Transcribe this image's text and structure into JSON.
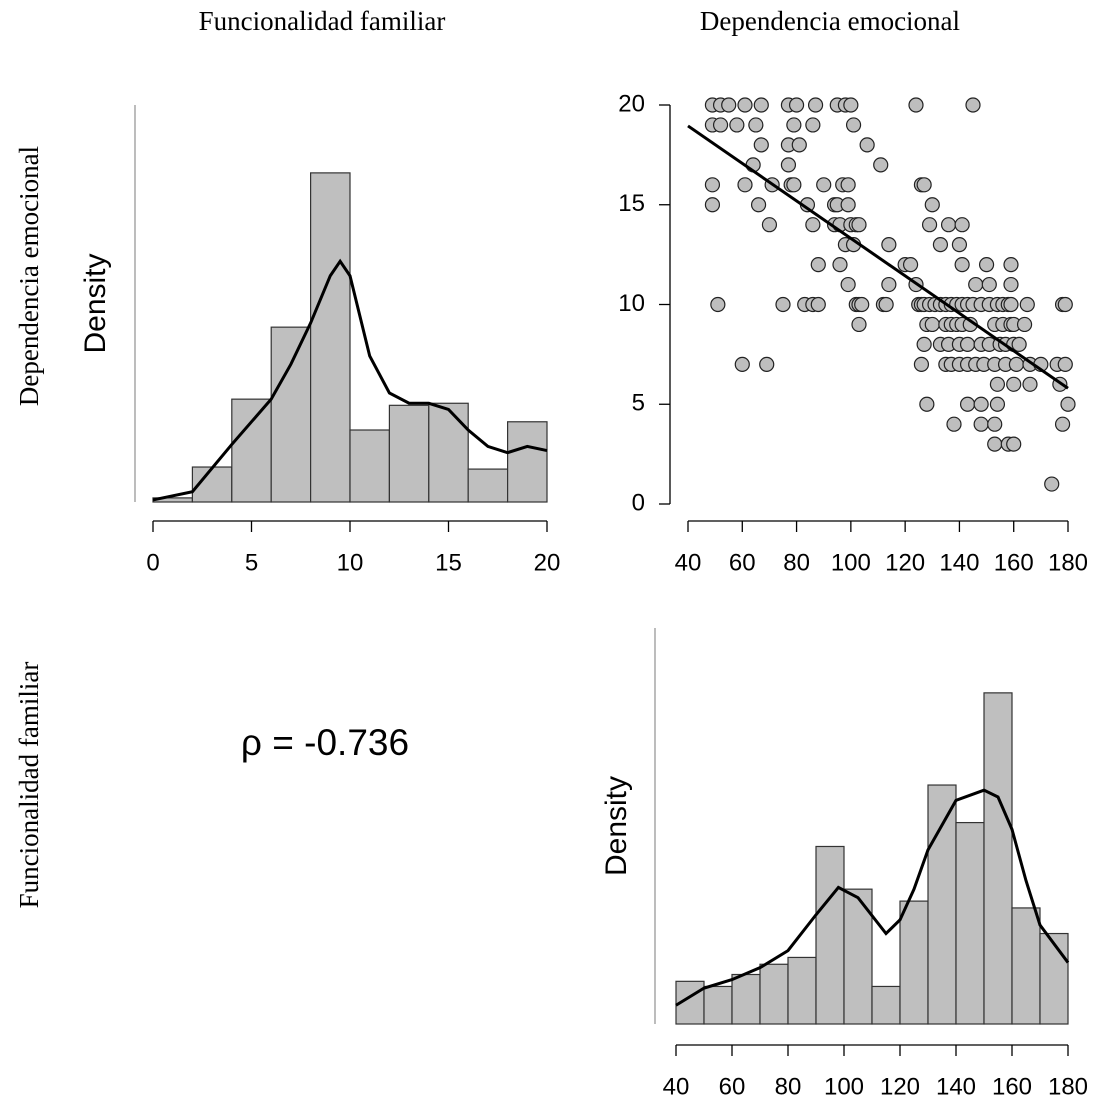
{
  "column_labels": [
    "Funcionalidad familiar",
    "Dependencia emocional"
  ],
  "row_labels": [
    "Dependencia emocional",
    "Funcionalidad familiar"
  ],
  "chart_data": [
    {
      "type": "histogram",
      "ylabel": "Density",
      "color": "#bfbfbf",
      "bins": [
        0,
        2,
        4,
        6,
        8,
        10,
        12,
        14,
        16,
        18,
        20
      ],
      "values": [
        0.002,
        0.017,
        0.05,
        0.085,
        0.16,
        0.035,
        0.047,
        0.048,
        0.016,
        0.039
      ],
      "density": {
        "x": [
          0,
          2,
          4,
          6,
          7,
          8,
          9,
          9.5,
          10,
          11,
          12,
          13,
          14,
          15,
          16,
          17,
          18,
          19,
          20
        ],
        "y": [
          0.001,
          0.005,
          0.028,
          0.05,
          0.067,
          0.087,
          0.11,
          0.117,
          0.11,
          0.071,
          0.053,
          0.048,
          0.048,
          0.045,
          0.035,
          0.027,
          0.024,
          0.027,
          0.025
        ]
      },
      "xlim": [
        0,
        20
      ],
      "xticks": [
        0,
        5,
        10,
        15,
        20
      ],
      "ylim": [
        0,
        0.193
      ]
    },
    {
      "type": "scatter",
      "color": "#bebebe",
      "x": [
        49,
        52,
        55,
        61,
        67,
        77,
        80,
        87,
        95,
        98,
        100,
        124,
        145,
        49,
        52,
        58,
        65,
        79,
        86,
        101,
        67,
        77,
        81,
        106,
        64,
        77,
        111,
        49,
        61,
        71,
        78,
        79,
        90,
        97,
        99,
        126,
        127,
        49,
        66,
        84,
        94,
        95,
        99,
        130,
        70,
        86,
        94,
        96,
        100,
        102,
        103,
        129,
        136,
        141,
        98,
        101,
        114,
        133,
        140,
        88,
        96,
        120,
        122,
        141,
        150,
        159,
        99,
        114,
        124,
        146,
        151,
        159,
        51,
        75,
        83,
        86,
        88,
        102,
        103,
        104,
        112,
        113,
        125,
        126,
        127,
        129,
        131,
        133,
        135,
        137,
        139,
        141,
        143,
        145,
        148,
        151,
        154,
        156,
        158,
        159,
        165,
        178,
        179,
        103,
        128,
        130,
        135,
        137,
        139,
        141,
        144,
        153,
        156,
        159,
        160,
        164,
        127,
        133,
        136,
        140,
        143,
        148,
        151,
        155,
        157,
        160,
        162,
        60,
        69,
        126,
        135,
        137,
        140,
        143,
        146,
        149,
        153,
        157,
        161,
        166,
        170,
        176,
        179,
        154,
        160,
        166,
        177,
        128,
        143,
        148,
        154,
        180,
        138,
        148,
        153,
        178,
        153,
        158,
        160,
        174
      ],
      "y": [
        20,
        20,
        20,
        20,
        20,
        20,
        20,
        20,
        20,
        20,
        20,
        20,
        20,
        19,
        19,
        19,
        19,
        19,
        19,
        19,
        18,
        18,
        18,
        18,
        17,
        17,
        17,
        16,
        16,
        16,
        16,
        16,
        16,
        16,
        16,
        16,
        16,
        15,
        15,
        15,
        15,
        15,
        15,
        15,
        14,
        14,
        14,
        14,
        14,
        14,
        14,
        14,
        14,
        14,
        13,
        13,
        13,
        13,
        13,
        12,
        12,
        12,
        12,
        12,
        12,
        12,
        11,
        11,
        11,
        11,
        11,
        11,
        10,
        10,
        10,
        10,
        10,
        10,
        10,
        10,
        10,
        10,
        10,
        10,
        10,
        10,
        10,
        10,
        10,
        10,
        10,
        10,
        10,
        10,
        10,
        10,
        10,
        10,
        10,
        10,
        10,
        10,
        10,
        9,
        9,
        9,
        9,
        9,
        9,
        9,
        9,
        9,
        9,
        9,
        9,
        9,
        8,
        8,
        8,
        8,
        8,
        8,
        8,
        8,
        8,
        8,
        8,
        7,
        7,
        7,
        7,
        7,
        7,
        7,
        7,
        7,
        7,
        7,
        7,
        7,
        7,
        7,
        7,
        6,
        6,
        6,
        6,
        5,
        5,
        5,
        5,
        5,
        4,
        4,
        4,
        4,
        3,
        3,
        3,
        1
      ],
      "fit": {
        "x": [
          40,
          180
        ],
        "y": [
          18.95,
          5.8
        ]
      },
      "xlim": [
        40,
        180
      ],
      "xticks": [
        40,
        60,
        80,
        100,
        120,
        140,
        160,
        180
      ],
      "ylim": [
        0,
        20
      ],
      "yticks": [
        0,
        5,
        10,
        15,
        20
      ]
    },
    {
      "type": "annotation",
      "text": "ρ = -0.736"
    },
    {
      "type": "histogram",
      "ylabel": "Density",
      "color": "#bfbfbf",
      "bins": [
        40,
        50,
        60,
        70,
        80,
        90,
        100,
        110,
        120,
        130,
        140,
        150,
        160,
        170,
        180
      ],
      "values": [
        0.0025,
        0.0022,
        0.0029,
        0.0035,
        0.0039,
        0.0104,
        0.0079,
        0.0022,
        0.0072,
        0.014,
        0.0118,
        0.0194,
        0.0068,
        0.0053
      ],
      "density": {
        "x": [
          40,
          50,
          60,
          70,
          80,
          90,
          98,
          105,
          115,
          120,
          125,
          130,
          140,
          150,
          155,
          160,
          165,
          170,
          180
        ],
        "y": [
          0.0011,
          0.0021,
          0.0026,
          0.0033,
          0.0043,
          0.0064,
          0.008,
          0.0074,
          0.0053,
          0.0061,
          0.0079,
          0.0102,
          0.0131,
          0.0137,
          0.0133,
          0.0114,
          0.0084,
          0.0058,
          0.0036
        ]
      },
      "xlim": [
        40,
        180
      ],
      "xticks": [
        40,
        60,
        80,
        100,
        120,
        140,
        160,
        180
      ],
      "ylim": [
        0,
        0.0232
      ]
    }
  ]
}
